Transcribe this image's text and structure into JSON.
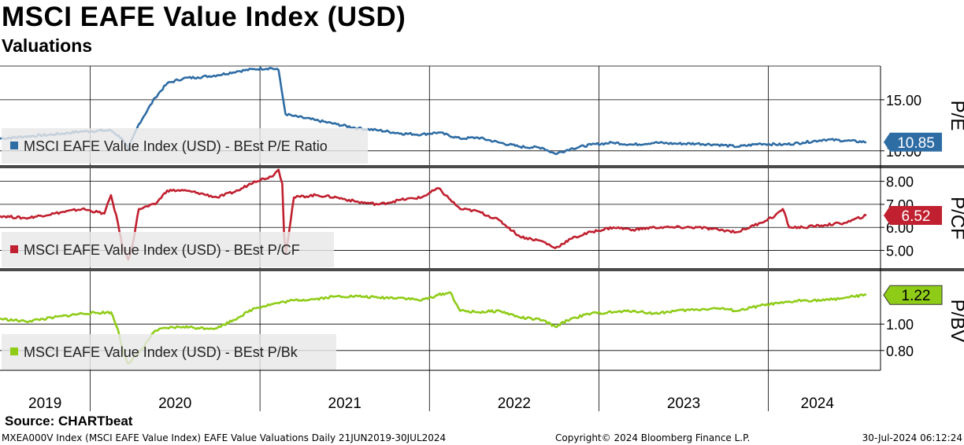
{
  "header": {
    "title": "MSCI EAFE Value Index (USD)",
    "subtitle": "Valuations"
  },
  "footer": {
    "source": "Source: CHARTbeat",
    "description": "MXEA000V Index (MSCI EAFE Value Index) EAFE Value Valuations  Daily 21JUN2019-30JUL2024",
    "copyright": "Copyright© 2024 Bloomberg Finance L.P.",
    "timestamp": "30-Jul-2024 06:12:24"
  },
  "chart_data": {
    "type": "line",
    "x_axis": {
      "labels": [
        "2019",
        "2020",
        "2021",
        "2022",
        "2023",
        "2024"
      ],
      "range": [
        "2019-06-21",
        "2024-07-30"
      ]
    },
    "grid": true,
    "panels": [
      {
        "axis_title": "P/E",
        "ylim": [
          8.6,
          18.3
        ],
        "yticks": [
          "15.00",
          "10.00"
        ],
        "current_value": "10.85",
        "color": "#2e6ca4",
        "legend_label": "MSCI EAFE Value Index (USD) - BEst P/E Ratio",
        "series": {
          "name": "MSCI EAFE Value Index (USD) - BEst P/E Ratio",
          "x": [
            "2019-06-21",
            "2019-08-15",
            "2019-10-15",
            "2019-12-15",
            "2020-02-15",
            "2020-03-10",
            "2020-03-23",
            "2020-04-15",
            "2020-05-20",
            "2020-06-15",
            "2020-07-20",
            "2020-08-20",
            "2020-10-01",
            "2020-11-15",
            "2020-12-20",
            "2021-01-25",
            "2021-02-10",
            "2021-02-20",
            "2021-02-25",
            "2021-03-15",
            "2021-05-01",
            "2021-06-15",
            "2021-08-01",
            "2021-09-15",
            "2021-11-01",
            "2021-12-15",
            "2022-01-20",
            "2022-03-08",
            "2022-04-15",
            "2022-06-01",
            "2022-07-15",
            "2022-09-01",
            "2022-09-29",
            "2022-11-01",
            "2022-12-15",
            "2023-02-01",
            "2023-03-15",
            "2023-05-01",
            "2023-06-15",
            "2023-08-01",
            "2023-09-15",
            "2023-10-27",
            "2023-12-15",
            "2024-02-01",
            "2024-03-15",
            "2024-05-01",
            "2024-06-15",
            "2024-07-30"
          ],
          "values": [
            11.2,
            11.4,
            11.6,
            11.9,
            12.0,
            11.2,
            10.2,
            12.6,
            15.2,
            16.6,
            17.1,
            17.2,
            17.4,
            17.8,
            18.0,
            18.1,
            17.9,
            15.0,
            13.6,
            13.4,
            13.0,
            12.6,
            12.2,
            12.0,
            11.7,
            11.6,
            11.8,
            11.2,
            11.3,
            10.8,
            10.4,
            10.3,
            9.7,
            10.2,
            10.6,
            10.8,
            10.6,
            10.8,
            10.7,
            10.7,
            10.6,
            10.4,
            10.7,
            10.6,
            10.8,
            11.1,
            11.0,
            10.85
          ]
        }
      },
      {
        "axis_title": "P/CF",
        "ylim": [
          4.2,
          8.6
        ],
        "yticks": [
          "8.00",
          "7.00",
          "6.00",
          "5.00"
        ],
        "current_value": "6.52",
        "color": "#c0202f",
        "legend_label": "MSCI EAFE Value Index (USD) - BEst P/CF",
        "series": {
          "name": "MSCI EAFE Value Index (USD) - BEst P/CF",
          "x": [
            "2019-06-21",
            "2019-08-15",
            "2019-10-15",
            "2019-12-15",
            "2020-02-01",
            "2020-02-15",
            "2020-03-01",
            "2020-03-10",
            "2020-03-23",
            "2020-04-01",
            "2020-04-15",
            "2020-05-20",
            "2020-06-15",
            "2020-07-20",
            "2020-08-20",
            "2020-10-01",
            "2020-11-15",
            "2020-12-20",
            "2021-01-25",
            "2021-02-10",
            "2021-02-18",
            "2021-02-22",
            "2021-02-26",
            "2021-03-15",
            "2021-05-01",
            "2021-06-15",
            "2021-08-01",
            "2021-09-15",
            "2021-11-01",
            "2021-12-15",
            "2022-01-20",
            "2022-02-15",
            "2022-03-08",
            "2022-04-15",
            "2022-06-01",
            "2022-07-15",
            "2022-09-01",
            "2022-09-29",
            "2022-11-01",
            "2022-12-15",
            "2023-02-01",
            "2023-03-15",
            "2023-05-01",
            "2023-06-15",
            "2023-08-01",
            "2023-09-15",
            "2023-10-27",
            "2023-12-15",
            "2024-01-15",
            "2024-02-01",
            "2024-02-15",
            "2024-03-15",
            "2024-05-01",
            "2024-06-15",
            "2024-07-30"
          ],
          "values": [
            6.5,
            6.4,
            6.6,
            6.8,
            6.6,
            7.4,
            6.2,
            5.2,
            4.6,
            5.2,
            6.8,
            7.0,
            7.6,
            7.6,
            7.5,
            7.3,
            7.6,
            8.0,
            8.2,
            8.5,
            7.9,
            5.6,
            4.9,
            7.3,
            7.4,
            7.3,
            7.1,
            7.0,
            7.2,
            7.3,
            7.7,
            7.2,
            6.8,
            6.7,
            6.3,
            5.6,
            5.4,
            5.1,
            5.5,
            5.8,
            6.0,
            5.9,
            6.0,
            6.0,
            6.0,
            5.9,
            5.8,
            6.2,
            6.5,
            6.8,
            6.0,
            6.0,
            6.1,
            6.2,
            6.52
          ]
        }
      },
      {
        "axis_title": "P/BV",
        "ylim": [
          0.65,
          1.4
        ],
        "yticks": [
          "1.00",
          "0.80"
        ],
        "current_value": "1.22",
        "color": "#8fcc18",
        "legend_label": "MSCI EAFE Value Index (USD) - BEst P/Bk",
        "series": {
          "name": "MSCI EAFE Value Index (USD) - BEst P/Bk",
          "x": [
            "2019-06-21",
            "2019-08-15",
            "2019-10-15",
            "2019-12-15",
            "2020-02-15",
            "2020-03-01",
            "2020-03-10",
            "2020-03-23",
            "2020-04-15",
            "2020-05-20",
            "2020-06-15",
            "2020-07-20",
            "2020-08-20",
            "2020-10-01",
            "2020-11-15",
            "2020-12-20",
            "2021-01-25",
            "2021-03-15",
            "2021-05-01",
            "2021-06-15",
            "2021-08-01",
            "2021-09-15",
            "2021-11-01",
            "2021-12-15",
            "2022-01-20",
            "2022-02-15",
            "2022-03-08",
            "2022-04-15",
            "2022-06-01",
            "2022-07-15",
            "2022-09-01",
            "2022-09-29",
            "2022-11-01",
            "2022-12-15",
            "2023-02-01",
            "2023-03-15",
            "2023-05-01",
            "2023-06-15",
            "2023-08-01",
            "2023-09-15",
            "2023-10-27",
            "2023-12-15",
            "2024-02-01",
            "2024-03-15",
            "2024-05-01",
            "2024-06-15",
            "2024-07-30"
          ],
          "values": [
            1.04,
            1.02,
            1.05,
            1.08,
            1.09,
            0.96,
            0.82,
            0.7,
            0.78,
            0.95,
            0.97,
            0.98,
            0.97,
            0.97,
            1.05,
            1.12,
            1.15,
            1.18,
            1.19,
            1.21,
            1.21,
            1.2,
            1.2,
            1.18,
            1.22,
            1.24,
            1.1,
            1.09,
            1.1,
            1.05,
            1.03,
            0.98,
            1.04,
            1.08,
            1.09,
            1.1,
            1.08,
            1.1,
            1.11,
            1.12,
            1.1,
            1.14,
            1.16,
            1.18,
            1.18,
            1.2,
            1.22
          ]
        }
      }
    ]
  }
}
